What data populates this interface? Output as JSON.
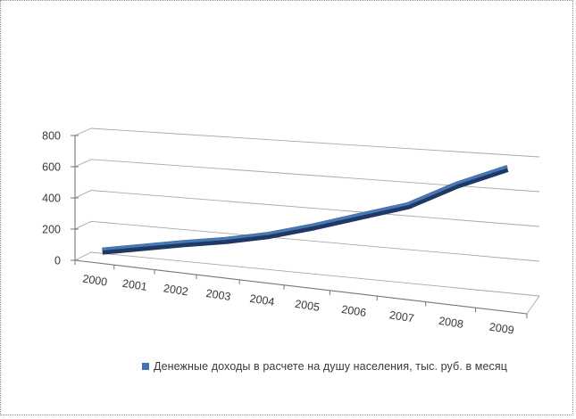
{
  "legend": {
    "label": "Денежные доходы в расчете на душу населения, тыс. руб. в месяц"
  },
  "y_axis": {
    "tick_labels": [
      "0",
      "200",
      "400",
      "600",
      "800"
    ]
  },
  "x_axis": {
    "tick_labels": [
      "2000",
      "2001",
      "2002",
      "2003",
      "2004",
      "2005",
      "2006",
      "2007",
      "2008",
      "2009"
    ]
  },
  "colors": {
    "series_dark": "#1f3864",
    "series_light": "#4779b6",
    "legend_marker": "#4472ae",
    "gridline": "#a8a8a8",
    "axis": "#757575",
    "text": "#383838",
    "frame_border": "#8f8f8f"
  },
  "chart_data": {
    "type": "line",
    "style": "3d-ribbon",
    "title": "",
    "xlabel": "",
    "ylabel": "",
    "categories": [
      "2000",
      "2001",
      "2002",
      "2003",
      "2004",
      "2005",
      "2006",
      "2007",
      "2008",
      "2009"
    ],
    "series": [
      {
        "name": "Денежные доходы в расчете на душу населения, тыс. руб. в месяц",
        "color": "#4f81bd",
        "values": [
          46.5,
          96.2,
          146.8,
          192.4,
          250.7,
          329.3,
          416.9,
          503.9,
          648.2,
          766.1
        ]
      }
    ],
    "ylim": [
      0,
      800
    ],
    "y_ticks": [
      0,
      200,
      400,
      600,
      800
    ],
    "grid": true,
    "legend_position": "bottom"
  }
}
